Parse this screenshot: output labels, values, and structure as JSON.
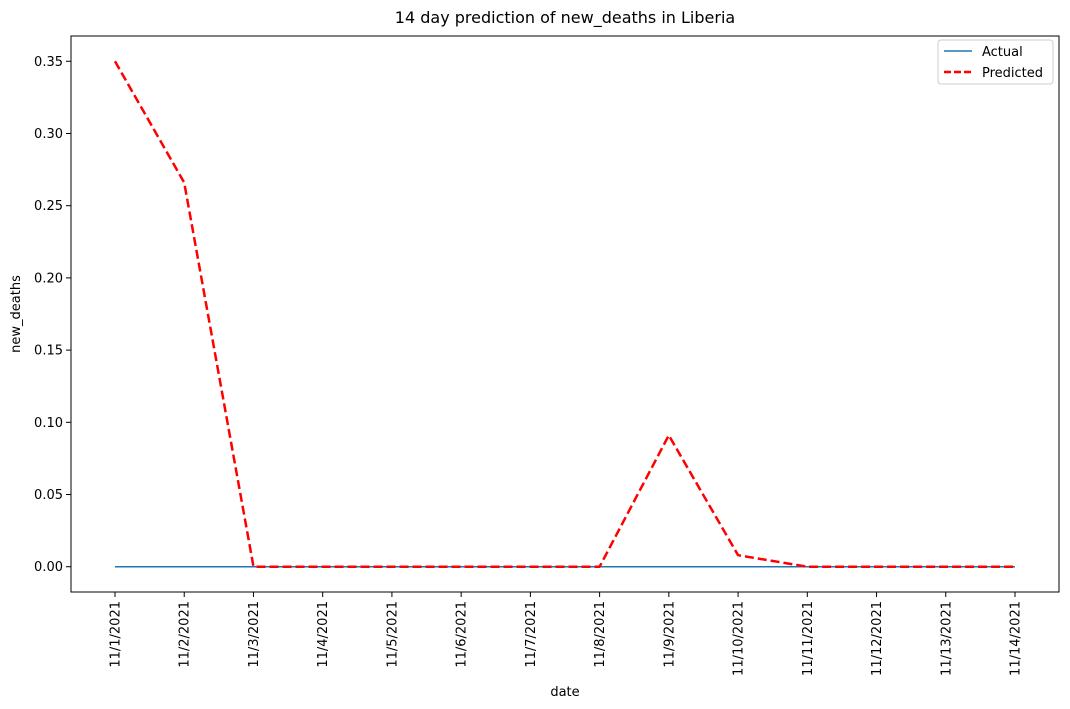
{
  "chart_data": {
    "type": "line",
    "title": "14 day prediction of new_deaths in Liberia",
    "xlabel": "date",
    "ylabel": "new_deaths",
    "categories": [
      "11/1/2021",
      "11/2/2021",
      "11/3/2021",
      "11/4/2021",
      "11/5/2021",
      "11/6/2021",
      "11/7/2021",
      "11/8/2021",
      "11/9/2021",
      "11/10/2021",
      "11/11/2021",
      "11/12/2021",
      "11/13/2021",
      "11/14/2021"
    ],
    "yticks": [
      "0.00",
      "0.05",
      "0.10",
      "0.15",
      "0.20",
      "0.25",
      "0.30",
      "0.35"
    ],
    "ylim": [
      -0.0175,
      0.3675
    ],
    "grid": false,
    "legend_position": "top-right",
    "series": [
      {
        "name": "Actual",
        "color": "#1f77b4",
        "style": "solid",
        "values": [
          0,
          0,
          0,
          0,
          0,
          0,
          0,
          0,
          0,
          0,
          0,
          0,
          0,
          0
        ]
      },
      {
        "name": "Predicted",
        "color": "#ff0000",
        "style": "dashed",
        "values": [
          0.35,
          0.266,
          0,
          0,
          0,
          0,
          0,
          0,
          0.091,
          0.008,
          0,
          0,
          0,
          0
        ]
      }
    ]
  }
}
